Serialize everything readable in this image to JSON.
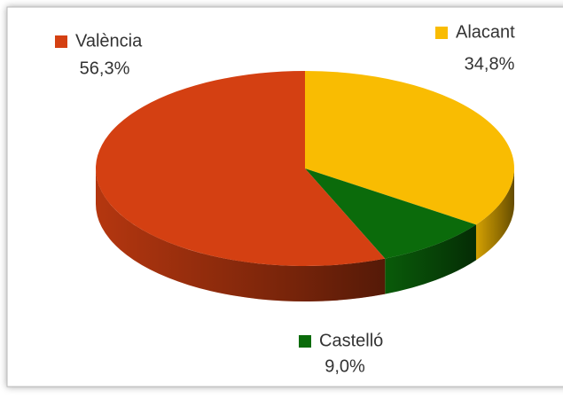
{
  "chart_data": {
    "type": "pie",
    "categories": [
      "Alacant",
      "Castelló",
      "València"
    ],
    "values": [
      34.8,
      9.0,
      56.3
    ],
    "value_labels": [
      "34,8%",
      "9,0%",
      "56,3%"
    ],
    "colors": [
      "#f9bc02",
      "#0b6b0b",
      "#d44012"
    ]
  }
}
